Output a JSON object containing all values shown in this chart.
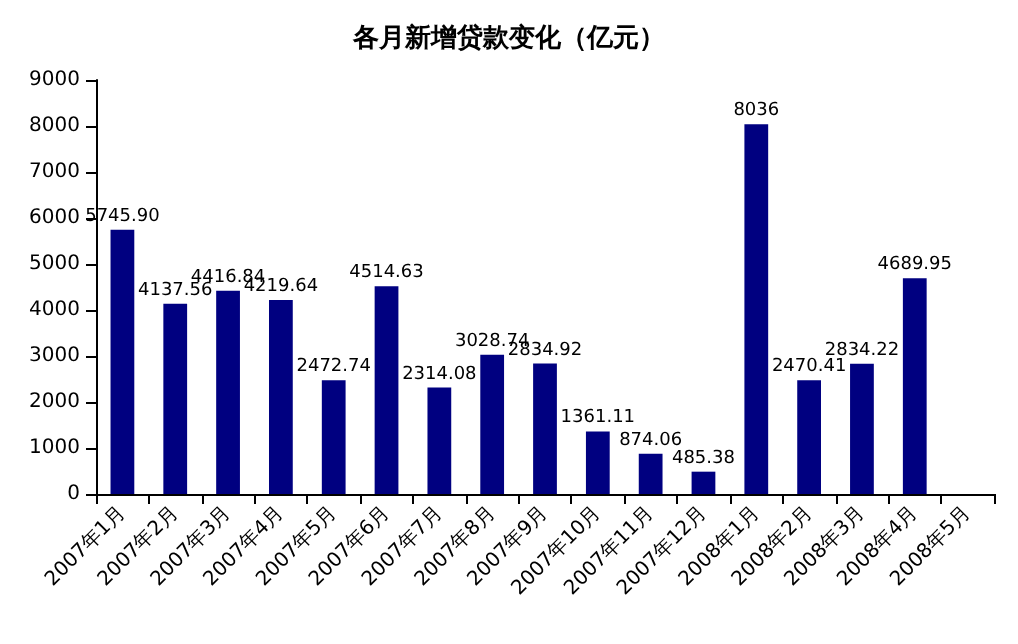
{
  "chart_data": {
    "type": "bar",
    "title": "各月新增贷款变化（亿元）",
    "categories": [
      "2007年1月",
      "2007年2月",
      "2007年3月",
      "2007年4月",
      "2007年5月",
      "2007年6月",
      "2007年7月",
      "2007年8月",
      "2007年9月",
      "2007年10月",
      "2007年11月",
      "2007年12月",
      "2008年1月",
      "2008年2月",
      "2008年3月",
      "2008年4月",
      "2008年5月"
    ],
    "values": [
      5745.9,
      4137.56,
      4416.84,
      4219.64,
      2472.74,
      4514.63,
      2314.08,
      3028.74,
      2834.92,
      1361.11,
      874.06,
      485.38,
      8036,
      2470.41,
      2834.22,
      4689.95,
      null
    ],
    "value_labels": [
      "5745.90",
      "4137.56",
      "4416.84",
      "4219.64",
      "2472.74",
      "4514.63",
      "2314.08",
      "3028.74",
      "2834.92",
      "1361.11",
      "874.06",
      "485.38",
      "8036",
      "2470.41",
      "2834.22",
      "4689.95",
      null
    ],
    "color": "#000080",
    "ylim": [
      0,
      9000
    ],
    "yticks": [
      0,
      1000,
      2000,
      3000,
      4000,
      5000,
      6000,
      7000,
      8000,
      9000
    ],
    "grid": false
  }
}
